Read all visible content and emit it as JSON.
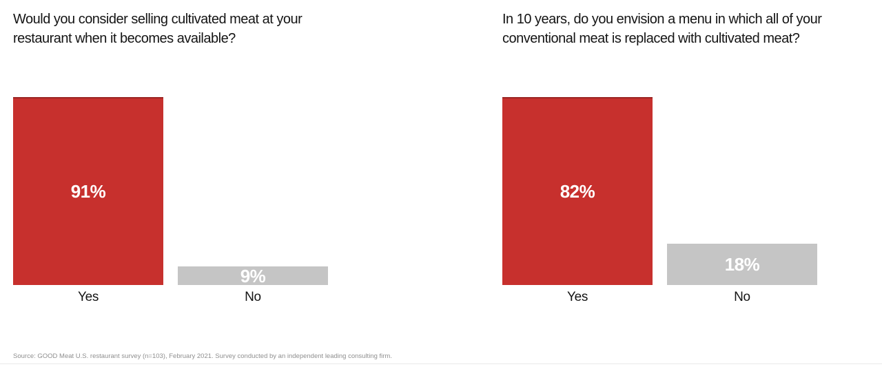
{
  "page": {
    "background": "#ffffff",
    "source_note": "Source: GOOD Meat U.S. restaurant survey (n=103), February 2021. Survey conducted by an independent leading consulting firm."
  },
  "colors": {
    "yes_bar": "#c7302d",
    "yes_bar_top_edge": "#9e2522",
    "no_bar": "#c5c5c5",
    "value_label_text": "#ffffff",
    "title_text": "#141414",
    "category_label_text": "#141414",
    "source_text": "#8f8f8f",
    "divider": "#e9e9e9"
  },
  "chart_data": [
    {
      "type": "bar",
      "title": "Would you consider selling cultivated meat at your\nrestaurant when it becomes available?",
      "categories": [
        "Yes",
        "No"
      ],
      "values": [
        91,
        9
      ],
      "value_labels": [
        "91%",
        "9%"
      ],
      "bar_colors": [
        "#c7302d",
        "#c5c5c5"
      ],
      "unit": "percent",
      "ylim": [
        0,
        100
      ],
      "grid": false,
      "legend_position": "none",
      "layout_hint": "tallest bar fills full plot height; value labels centered inside bars; category labels below bars; no axes or gridlines"
    },
    {
      "type": "bar",
      "title": "In 10 years, do you envision a menu in which all of your\nconventional meat is replaced with cultivated meat?",
      "categories": [
        "Yes",
        "No"
      ],
      "values": [
        82,
        18
      ],
      "value_labels": [
        "82%",
        "18%"
      ],
      "bar_colors": [
        "#c7302d",
        "#c5c5c5"
      ],
      "unit": "percent",
      "ylim": [
        0,
        100
      ],
      "grid": false,
      "legend_position": "none",
      "layout_hint": "tallest bar fills full plot height; value labels centered inside bars; category labels below bars; no axes or gridlines"
    }
  ]
}
